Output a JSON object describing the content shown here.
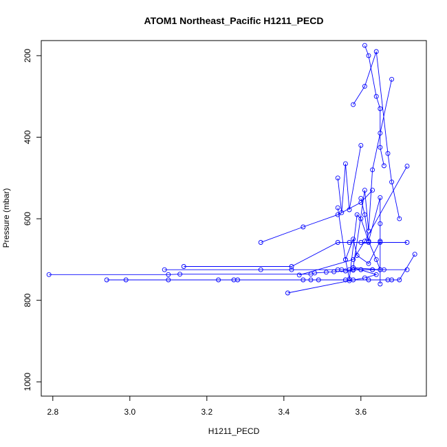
{
  "chart_data": {
    "type": "line",
    "title": "ATOM1 Northeast_Pacific H1211_PECD",
    "xlabel": "H1211_PECD",
    "ylabel": "Pressure (mbar)",
    "xlim": [
      2.77,
      3.77
    ],
    "ylim": [
      1035,
      163
    ],
    "y_axis_inverted": true,
    "x_ticks": [
      "2.8",
      "3.0",
      "3.2",
      "3.4",
      "3.6"
    ],
    "y_ticks": [
      "200",
      "400",
      "600",
      "800",
      "1000"
    ],
    "grid": false,
    "legend": "none",
    "marker": "open-circle",
    "color": "#0000ff",
    "series": [
      {
        "x": [
          2.79,
          3.1,
          3.13,
          3.47,
          3.48,
          3.51,
          3.53,
          3.56,
          3.58,
          3.6,
          3.63,
          3.72
        ],
        "y": [
          737,
          737,
          736,
          736,
          733,
          731,
          730,
          728,
          726,
          725,
          725,
          725
        ]
      },
      {
        "x": [
          2.94,
          2.99,
          3.1,
          3.23,
          3.27,
          3.28,
          3.45,
          3.47,
          3.49,
          3.56,
          3.58,
          3.62,
          3.67,
          3.68,
          3.7,
          3.74
        ],
        "y": [
          750,
          750,
          750,
          750,
          750,
          750,
          750,
          750,
          750,
          750,
          750,
          750,
          750,
          750,
          750,
          687
        ]
      },
      {
        "x": [
          3.09,
          3.34,
          3.42,
          3.54,
          3.55,
          3.57,
          3.58,
          3.6,
          3.63,
          3.66
        ],
        "y": [
          725,
          725,
          725,
          725,
          725,
          725,
          725,
          725,
          725,
          725
        ]
      },
      {
        "x": [
          3.14,
          3.42,
          3.54,
          3.57,
          3.6,
          3.62,
          3.65,
          3.72
        ],
        "y": [
          717,
          717,
          658,
          658,
          658,
          658,
          658,
          658
        ]
      },
      {
        "x": [
          3.41,
          3.57,
          3.61,
          3.64,
          3.58,
          3.65
        ],
        "y": [
          782,
          752,
          745,
          737,
          720,
          725
        ]
      },
      {
        "x": [
          3.44,
          3.58,
          3.61,
          3.72
        ],
        "y": [
          738,
          700,
          655,
          471
        ]
      },
      {
        "x": [
          3.34,
          3.45,
          3.54,
          3.6,
          3.63
        ],
        "y": [
          658,
          620,
          590,
          560,
          530
        ]
      },
      {
        "x": [
          3.54,
          3.55,
          3.56,
          3.57,
          3.6
        ],
        "y": [
          500,
          585,
          465,
          578,
          420
        ]
      },
      {
        "x": [
          3.61,
          3.62,
          3.64,
          3.65,
          3.65,
          3.66
        ],
        "y": [
          175,
          200,
          300,
          330,
          425,
          470
        ]
      },
      {
        "x": [
          3.58,
          3.61,
          3.64,
          3.67,
          3.68,
          3.7
        ],
        "y": [
          320,
          275,
          190,
          440,
          510,
          600
        ]
      },
      {
        "x": [
          3.6,
          3.61,
          3.62,
          3.65,
          3.65,
          3.65
        ],
        "y": [
          550,
          590,
          655,
          548,
          612,
          760
        ]
      },
      {
        "x": [
          3.68,
          3.65,
          3.63,
          3.62,
          3.61,
          3.58
        ],
        "y": [
          258,
          390,
          480,
          630,
          530,
          720
        ]
      },
      {
        "x": [
          3.56,
          3.57,
          3.59,
          3.6,
          3.62,
          3.64,
          3.65
        ],
        "y": [
          700,
          748,
          590,
          600,
          655,
          700,
          725
        ]
      },
      {
        "x": [
          3.54,
          3.56,
          3.58,
          3.59,
          3.62,
          3.65
        ],
        "y": [
          573,
          700,
          650,
          690,
          710,
          655
        ]
      }
    ]
  }
}
